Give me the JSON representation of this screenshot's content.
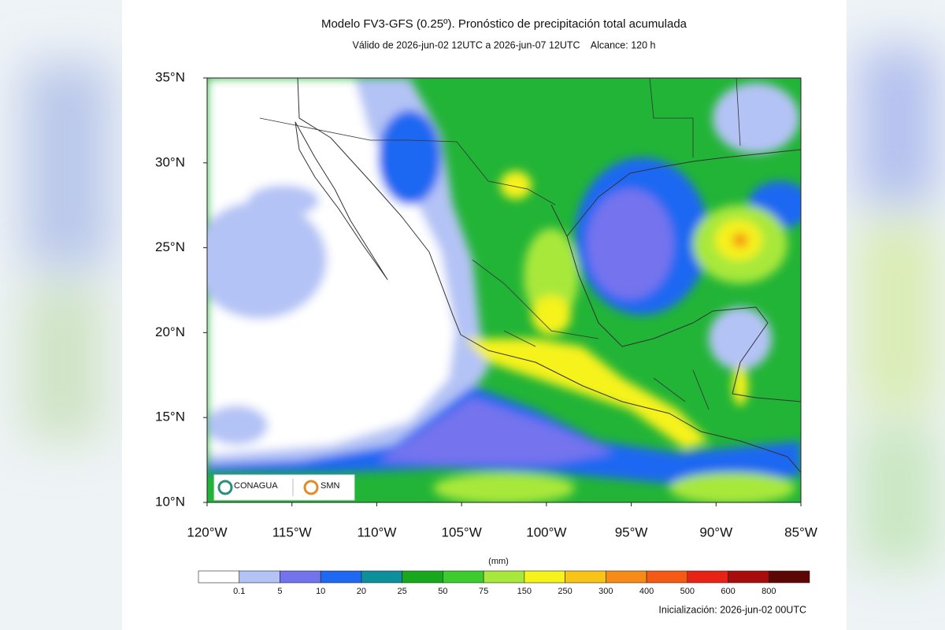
{
  "header": {
    "title": "Modelo FV3-GFS (0.25º). Pronóstico de precipitación total acumulada",
    "subtitle": "Válido de 2026-jun-02 12UTC a 2026-jun-07 12UTC    Alcance: 120 h"
  },
  "map": {
    "lat_labels": [
      "35°N",
      "30°N",
      "25°N",
      "20°N",
      "15°N",
      "10°N"
    ],
    "lon_labels": [
      "120°W",
      "115°W",
      "110°W",
      "105°W",
      "100°W",
      "95°W",
      "90°W",
      "85°W"
    ],
    "logos": [
      "CONAGUA",
      "SMN"
    ]
  },
  "colorbar": {
    "unit": "(mm)",
    "colors": [
      "#ffffff",
      "#b4c3f5",
      "#7473ee",
      "#1f68f2",
      "#0d8f9c",
      "#18a81e",
      "#3ccc2e",
      "#a8e83a",
      "#f6f21a",
      "#f8c418",
      "#f68c16",
      "#f45a14",
      "#e82214",
      "#a80c0c",
      "#5c0606"
    ],
    "labels": [
      "0.1",
      "5",
      "10",
      "20",
      "25",
      "50",
      "75",
      "150",
      "250",
      "300",
      "400",
      "500",
      "600",
      "800"
    ]
  },
  "footer": "Inicialización: 2026-jun-02 00UTC"
}
